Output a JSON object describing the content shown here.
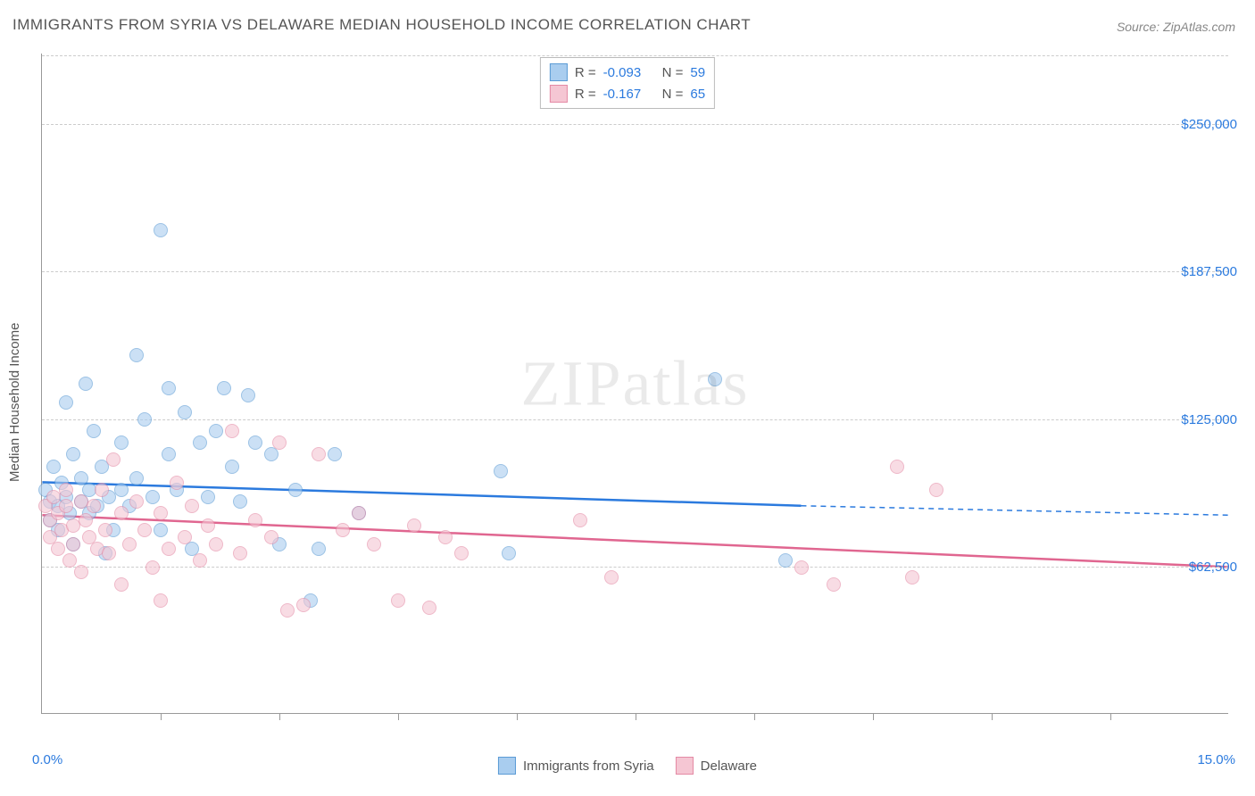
{
  "title": "IMMIGRANTS FROM SYRIA VS DELAWARE MEDIAN HOUSEHOLD INCOME CORRELATION CHART",
  "source_label": "Source:",
  "source_name": "ZipAtlas.com",
  "watermark": "ZIPatlas",
  "chart": {
    "type": "scatter",
    "ylabel": "Median Household Income",
    "xmin_label": "0.0%",
    "xmax_label": "15.0%",
    "xlim": [
      0,
      15
    ],
    "ylim": [
      0,
      280000
    ],
    "ytick_values": [
      62500,
      125000,
      187500,
      250000
    ],
    "ytick_labels": [
      "$62,500",
      "$125,000",
      "$187,500",
      "$250,000"
    ],
    "ytick_label_color": "#2b7ade",
    "xtick_positions": [
      1.5,
      3.0,
      4.5,
      6.0,
      7.5,
      9.0,
      10.5,
      12.0,
      13.5
    ],
    "gridline_color": "#cccccc",
    "axis_color": "#999999",
    "background_color": "#ffffff",
    "ylabel_fontsize": 15,
    "tick_fontsize": 15,
    "title_fontsize": 17,
    "title_color": "#555555",
    "point_radius": 8,
    "point_opacity": 0.6,
    "series": [
      {
        "name": "Immigrants from Syria",
        "fill_color": "#a9cdef",
        "stroke_color": "#5b9bd5",
        "trend_color": "#2b7ade",
        "trend_width": 2.5,
        "R": "-0.093",
        "N": "59",
        "trend": {
          "x1": 0,
          "y1": 98000,
          "x2": 9.6,
          "y2": 88000,
          "x_dash_end": 15,
          "y_dash_end": 84000
        },
        "points": [
          [
            0.05,
            95000
          ],
          [
            0.1,
            90000
          ],
          [
            0.1,
            82000
          ],
          [
            0.15,
            105000
          ],
          [
            0.2,
            88000
          ],
          [
            0.2,
            78000
          ],
          [
            0.25,
            98000
          ],
          [
            0.3,
            132000
          ],
          [
            0.3,
            92000
          ],
          [
            0.35,
            85000
          ],
          [
            0.4,
            110000
          ],
          [
            0.4,
            72000
          ],
          [
            0.5,
            100000
          ],
          [
            0.5,
            90000
          ],
          [
            0.55,
            140000
          ],
          [
            0.6,
            95000
          ],
          [
            0.6,
            85000
          ],
          [
            0.65,
            120000
          ],
          [
            0.7,
            88000
          ],
          [
            0.75,
            105000
          ],
          [
            0.8,
            68000
          ],
          [
            0.85,
            92000
          ],
          [
            0.9,
            78000
          ],
          [
            1.0,
            115000
          ],
          [
            1.0,
            95000
          ],
          [
            1.1,
            88000
          ],
          [
            1.2,
            152000
          ],
          [
            1.2,
            100000
          ],
          [
            1.3,
            125000
          ],
          [
            1.4,
            92000
          ],
          [
            1.5,
            205000
          ],
          [
            1.5,
            78000
          ],
          [
            1.6,
            138000
          ],
          [
            1.6,
            110000
          ],
          [
            1.7,
            95000
          ],
          [
            1.8,
            128000
          ],
          [
            1.9,
            70000
          ],
          [
            2.0,
            115000
          ],
          [
            2.1,
            92000
          ],
          [
            2.2,
            120000
          ],
          [
            2.3,
            138000
          ],
          [
            2.4,
            105000
          ],
          [
            2.5,
            90000
          ],
          [
            2.6,
            135000
          ],
          [
            2.7,
            115000
          ],
          [
            2.9,
            110000
          ],
          [
            3.0,
            72000
          ],
          [
            3.2,
            95000
          ],
          [
            3.4,
            48000
          ],
          [
            3.5,
            70000
          ],
          [
            3.7,
            110000
          ],
          [
            4.0,
            85000
          ],
          [
            5.8,
            103000
          ],
          [
            5.9,
            68000
          ],
          [
            8.5,
            142000
          ],
          [
            9.4,
            65000
          ]
        ]
      },
      {
        "name": "Delaware",
        "fill_color": "#f5c6d3",
        "stroke_color": "#e48aa5",
        "trend_color": "#e06690",
        "trend_width": 2.5,
        "R": "-0.167",
        "N": "65",
        "trend": {
          "x1": 0,
          "y1": 84000,
          "x2": 15,
          "y2": 62000
        },
        "points": [
          [
            0.05,
            88000
          ],
          [
            0.1,
            82000
          ],
          [
            0.1,
            75000
          ],
          [
            0.15,
            92000
          ],
          [
            0.2,
            70000
          ],
          [
            0.2,
            85000
          ],
          [
            0.25,
            78000
          ],
          [
            0.3,
            95000
          ],
          [
            0.3,
            88000
          ],
          [
            0.35,
            65000
          ],
          [
            0.4,
            80000
          ],
          [
            0.4,
            72000
          ],
          [
            0.5,
            90000
          ],
          [
            0.5,
            60000
          ],
          [
            0.55,
            82000
          ],
          [
            0.6,
            75000
          ],
          [
            0.65,
            88000
          ],
          [
            0.7,
            70000
          ],
          [
            0.75,
            95000
          ],
          [
            0.8,
            78000
          ],
          [
            0.85,
            68000
          ],
          [
            0.9,
            108000
          ],
          [
            1.0,
            85000
          ],
          [
            1.0,
            55000
          ],
          [
            1.1,
            72000
          ],
          [
            1.2,
            90000
          ],
          [
            1.3,
            78000
          ],
          [
            1.4,
            62000
          ],
          [
            1.5,
            85000
          ],
          [
            1.5,
            48000
          ],
          [
            1.6,
            70000
          ],
          [
            1.7,
            98000
          ],
          [
            1.8,
            75000
          ],
          [
            1.9,
            88000
          ],
          [
            2.0,
            65000
          ],
          [
            2.1,
            80000
          ],
          [
            2.2,
            72000
          ],
          [
            2.4,
            120000
          ],
          [
            2.5,
            68000
          ],
          [
            2.7,
            82000
          ],
          [
            2.9,
            75000
          ],
          [
            3.0,
            115000
          ],
          [
            3.1,
            44000
          ],
          [
            3.3,
            46000
          ],
          [
            3.5,
            110000
          ],
          [
            3.8,
            78000
          ],
          [
            4.0,
            85000
          ],
          [
            4.2,
            72000
          ],
          [
            4.5,
            48000
          ],
          [
            4.7,
            80000
          ],
          [
            4.9,
            45000
          ],
          [
            5.1,
            75000
          ],
          [
            5.3,
            68000
          ],
          [
            6.8,
            82000
          ],
          [
            7.2,
            58000
          ],
          [
            9.6,
            62000
          ],
          [
            10.0,
            55000
          ],
          [
            10.8,
            105000
          ],
          [
            11.0,
            58000
          ],
          [
            11.3,
            95000
          ]
        ]
      }
    ]
  },
  "legend_top": {
    "R_label": "R =",
    "N_label": "N ="
  },
  "legend_bottom": {
    "items": [
      "Immigrants from Syria",
      "Delaware"
    ]
  }
}
